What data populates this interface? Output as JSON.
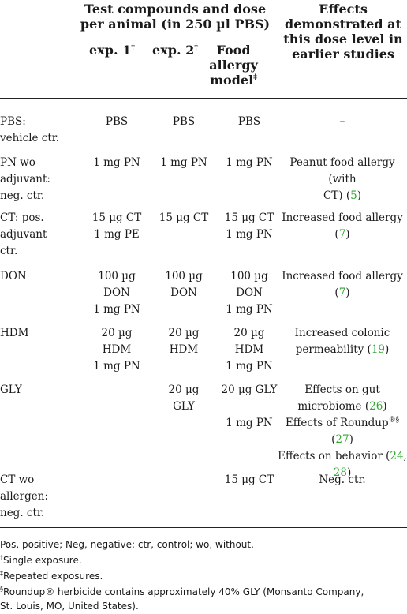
{
  "header": {
    "group_title_line1": "Test compounds and dose",
    "group_title_line2": "per animal (in 250 µl PBS)",
    "col_exp1": "exp. 1",
    "col_exp1_mark": "†",
    "col_exp2": "exp. 2",
    "col_exp2_mark": "†",
    "col_food_line1": "Food",
    "col_food_line2": "allergy",
    "col_food_line3": "model",
    "col_food_mark": "‡",
    "col_effects_line1": "Effects",
    "col_effects_line2": "demonstrated at",
    "col_effects_line3": "this dose level in",
    "col_effects_line4": "earlier studies"
  },
  "rows": [
    {
      "label": [
        "PBS:",
        "vehicle ctr."
      ],
      "exp1": [
        "PBS"
      ],
      "exp2": [
        "PBS"
      ],
      "food": [
        "PBS"
      ],
      "effects": [
        {
          "text": "–"
        }
      ]
    },
    {
      "label": [
        "PN wo",
        "adjuvant:",
        "neg. ctr."
      ],
      "exp1": [
        "1 mg PN"
      ],
      "exp2": [
        "1 mg PN"
      ],
      "food": [
        "1 mg PN"
      ],
      "effects": [
        {
          "text": "Peanut food allergy (with"
        },
        {
          "text": "CT) (",
          "ref": "5",
          "after": ")"
        }
      ]
    },
    {
      "label": [
        "CT: pos.",
        "adjuvant",
        "ctr."
      ],
      "exp1": [
        "15 µg CT",
        "1 mg PE"
      ],
      "exp2": [
        "15 µg CT"
      ],
      "food": [
        "15 µg CT",
        "1 mg PN"
      ],
      "effects": [
        {
          "text": "Increased food allergy (",
          "ref": "7",
          "after": ")"
        }
      ]
    },
    {
      "label": [
        "DON"
      ],
      "exp1": [
        "100 µg",
        "DON",
        "1 mg PN"
      ],
      "exp2": [
        "100 µg",
        "DON"
      ],
      "food": [
        "100 µg",
        "DON",
        "1 mg PN"
      ],
      "effects": [
        {
          "text": "Increased food allergy (",
          "ref": "7",
          "after": ")"
        }
      ]
    },
    {
      "label": [
        "HDM"
      ],
      "exp1": [
        "20 µg",
        "HDM",
        "1 mg PN"
      ],
      "exp2": [
        "20 µg",
        "HDM"
      ],
      "food": [
        "20 µg",
        "HDM",
        "1 mg PN"
      ],
      "effects": [
        {
          "text": "Increased colonic"
        },
        {
          "text": "permeability (",
          "ref": "19",
          "after": ")"
        }
      ]
    },
    {
      "label": [
        "GLY"
      ],
      "exp1": [],
      "exp2": [
        "20 µg",
        "GLY"
      ],
      "food": [
        "20 µg GLY",
        "",
        "1 mg PN"
      ],
      "effects": [
        {
          "text": "Effects on gut"
        },
        {
          "text": "microbiome (",
          "ref": "26",
          "after": ")"
        },
        {
          "text": "Effects of Roundup",
          "mark": "®§",
          "text2": " (",
          "ref": "27",
          "after": ")"
        },
        {
          "text": "Effects on behavior (",
          "ref": "24",
          "after": ","
        },
        {
          "text": "",
          "ref": "28",
          "after": ")"
        }
      ]
    },
    {
      "label": [
        "CT wo",
        "allergen:",
        "neg. ctr."
      ],
      "exp1": [],
      "exp2": [],
      "food": [
        "15 µg CT"
      ],
      "effects": [
        {
          "text": "Neg. ctr."
        }
      ]
    }
  ],
  "footnotes": {
    "abbrev": "Pos, positive; Neg, negative; ctr, control; wo, without.",
    "single_mark": "†",
    "single": "Single exposure.",
    "repeated_mark": "‡",
    "repeated": "Repeated exposures.",
    "roundup_mark": "§",
    "roundup_line1": "Roundup® herbicide contains approximately 40% GLY (Monsanto Company,",
    "roundup_line2": "St. Louis, MO, United States)."
  },
  "colors": {
    "reference_link": "#2eaa2e",
    "rule": "#222222",
    "text": "#1a1a1a"
  }
}
